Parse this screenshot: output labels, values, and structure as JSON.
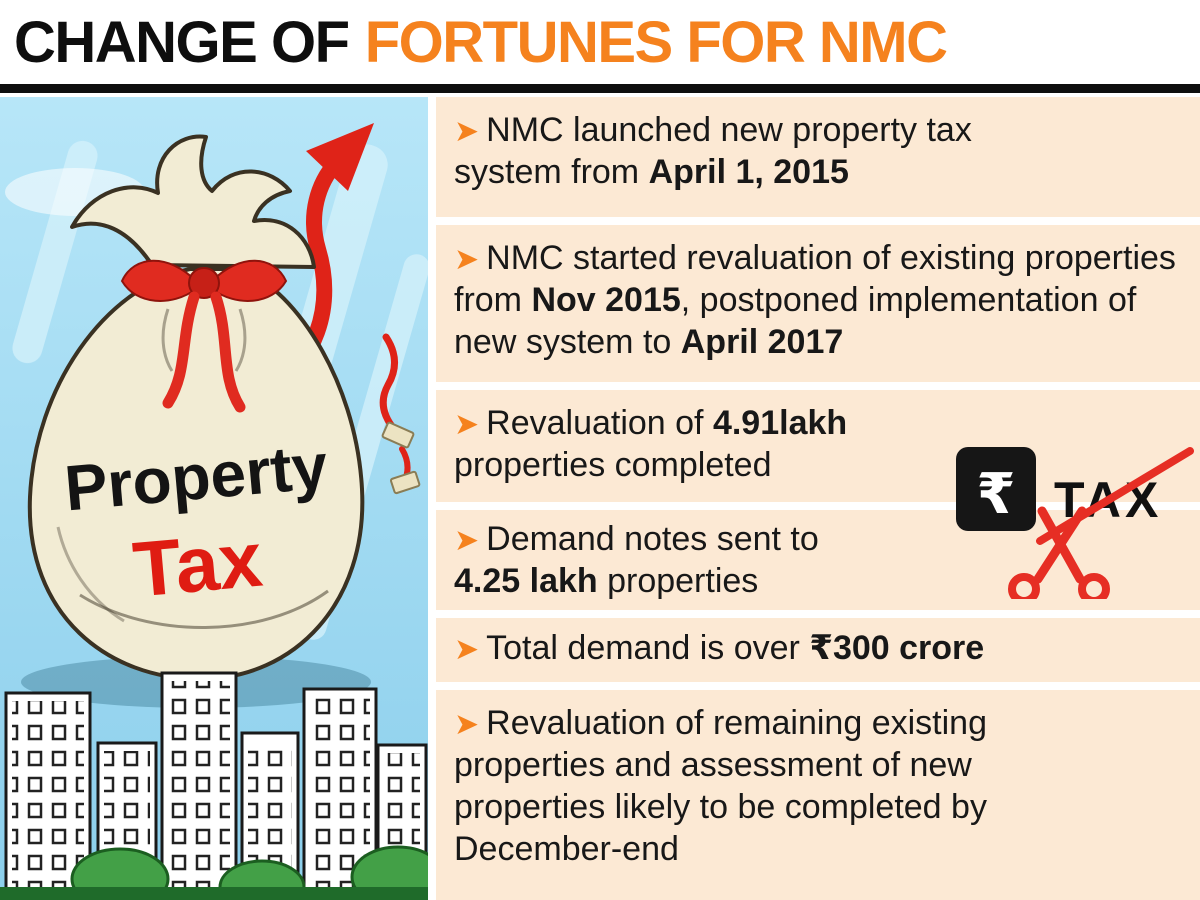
{
  "title": {
    "black": "CHANGE OF",
    "orange": "FORTUNES FOR NMC"
  },
  "bullet_glyph": "➤",
  "bullets": [
    {
      "segments": [
        {
          "t": "NMC launched new property tax system from ",
          "b": false
        },
        {
          "t": "April 1, 2015",
          "b": true
        }
      ]
    },
    {
      "segments": [
        {
          "t": "NMC started revaluation of existing properties from ",
          "b": false
        },
        {
          "t": "Nov 2015",
          "b": true
        },
        {
          "t": ", postponed implementation of new system to ",
          "b": false
        },
        {
          "t": "April 2017",
          "b": true
        }
      ]
    },
    {
      "segments": [
        {
          "t": "Revaluation of ",
          "b": false
        },
        {
          "t": "4.91lakh",
          "b": true
        },
        {
          "t": " properties completed",
          "b": false
        }
      ]
    },
    {
      "segments": [
        {
          "t": "Demand notes sent to ",
          "b": false
        },
        {
          "t": "4.25 lakh",
          "b": true
        },
        {
          "t": " properties",
          "b": false
        }
      ]
    },
    {
      "segments": [
        {
          "t": "Total demand is over ",
          "b": false
        },
        {
          "t": "₹300 crore",
          "b": true
        }
      ]
    },
    {
      "segments": [
        {
          "t": "Revaluation of remaining existing properties and assessment of new properties likely to be completed by December-end",
          "b": false
        }
      ]
    }
  ],
  "illustration": {
    "bag_word_top": "Property",
    "bag_word_bottom": "Tax",
    "tax_label": "TAX",
    "rupee": "₹"
  },
  "colors": {
    "accent_orange": "#f5821e",
    "panel_bg": "#fce9d4",
    "headline_black": "#0e0e0e",
    "red": "#df2318",
    "sky_blue": "#9ddcf2"
  }
}
